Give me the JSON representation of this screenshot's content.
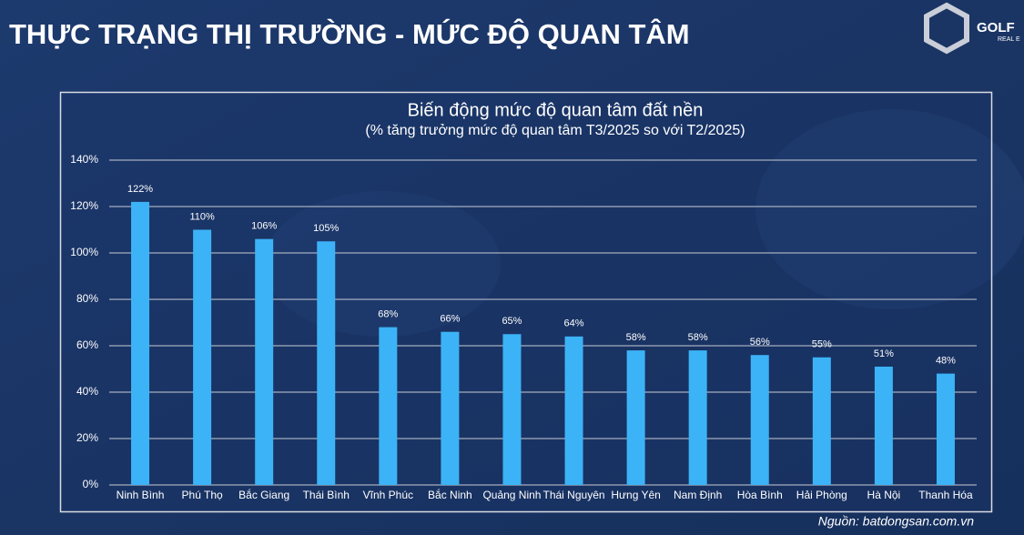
{
  "header": {
    "title": "THỰC TRẠNG THỊ TRƯỜNG - MỨC ĐỘ QUAN TÂM"
  },
  "logo": {
    "name": "GOLF",
    "tagline": "REAL E"
  },
  "chart_data": {
    "type": "bar",
    "title": "Biến động mức độ quan tâm đất nền",
    "subtitle": "(% tăng trưởng mức độ quan tâm T3/2025 so với T2/2025)",
    "categories": [
      "Ninh Bình",
      "Phú Thọ",
      "Bắc Giang",
      "Thái Bình",
      "Vĩnh Phúc",
      "Bắc Ninh",
      "Quảng Ninh",
      "Thái Nguyên",
      "Hưng Yên",
      "Nam Định",
      "Hòa Bình",
      "Hải Phòng",
      "Hà Nội",
      "Thanh Hóa"
    ],
    "values": [
      122,
      110,
      106,
      105,
      68,
      66,
      65,
      64,
      58,
      58,
      56,
      55,
      51,
      48
    ],
    "value_labels": [
      "122%",
      "110%",
      "106%",
      "105%",
      "68%",
      "66%",
      "65%",
      "64%",
      "58%",
      "58%",
      "56%",
      "55%",
      "51%",
      "48%"
    ],
    "color": "#3cb3f6",
    "ylim": [
      0,
      140
    ],
    "yticks": [
      {
        "value": 0,
        "label": "0%"
      },
      {
        "value": 20,
        "label": "20%"
      },
      {
        "value": 40,
        "label": "40%"
      },
      {
        "value": 60,
        "label": "60%"
      },
      {
        "value": 80,
        "label": "80%"
      },
      {
        "value": 100,
        "label": "100%"
      },
      {
        "value": 120,
        "label": "120%"
      },
      {
        "value": 140,
        "label": "140%"
      }
    ],
    "grid": true
  },
  "source": "Nguồn: batdongsan.com.vn"
}
